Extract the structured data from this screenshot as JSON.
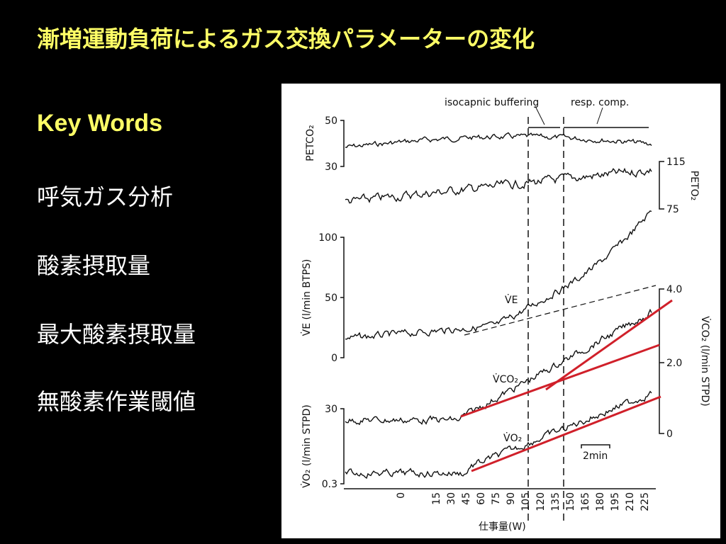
{
  "title": "漸増運動負荷によるガス交換パラメーターの変化",
  "key_words": {
    "heading": "Key Words",
    "items": [
      "呼気ガス分析",
      "酸素摂取量",
      "最大酸素摂取量",
      "無酸素作業閾値"
    ]
  },
  "figure": {
    "phases": [
      "isocapnic buffering",
      "resp. comp."
    ],
    "panels": [
      {
        "label": "PETCO₂",
        "ticks": [
          "50",
          "30"
        ]
      },
      {
        "label": "PETO₂",
        "ticks": [
          "115",
          "75"
        ]
      },
      {
        "label": "V̇E (l/min BTPS)",
        "ticks": [
          "100",
          "50",
          "0"
        ],
        "trace_label": "V̇E"
      },
      {
        "label": "V̇CO₂ (l/min STPD)",
        "ticks": [
          "4.0",
          "2.0",
          "0"
        ],
        "trace_label": "V̇CO₂"
      },
      {
        "label": "V̇O₂ (l/min STPD)",
        "ticks": [
          "30",
          "0.3"
        ],
        "trace_label": "V̇O₂"
      }
    ],
    "scale_bar": "2min",
    "x_labels": [
      "0",
      "15",
      "30",
      "45",
      "60",
      "75",
      "90",
      "105",
      "120",
      "135",
      "150",
      "165",
      "180",
      "195",
      "210",
      "225"
    ],
    "x_title": "仕事量(W)"
  }
}
